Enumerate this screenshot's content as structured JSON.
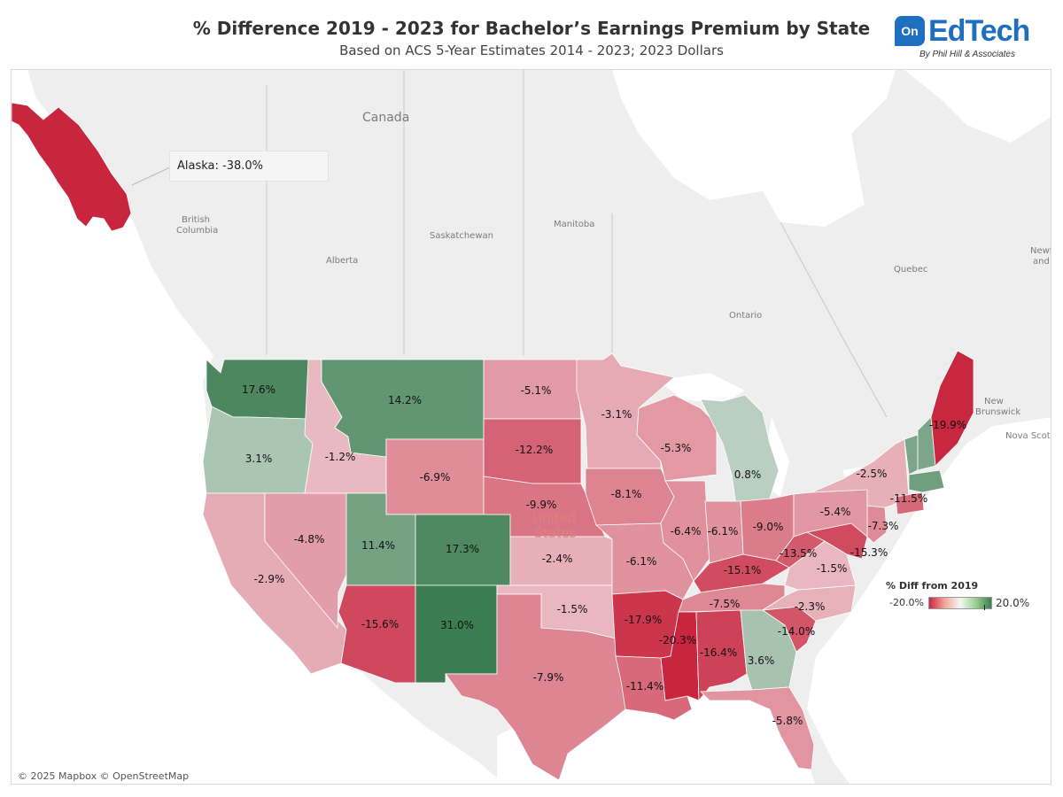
{
  "header": {
    "title": "% Difference 2019 - 2023 for Bachelor’s Earnings Premium by State",
    "subtitle": "Based on ACS 5-Year Estimates 2014 - 2023; 2023 Dollars"
  },
  "logo": {
    "badge": "On",
    "name": "EdTech",
    "byline": "By Phil Hill & Associates"
  },
  "attribution": "© 2025 Mapbox © OpenStreetMap",
  "tooltip": "Alaska: -38.0%",
  "basemap_labels": {
    "canada": "Canada",
    "british_columbia_1": "British",
    "british_columbia_2": "Columbia",
    "alberta": "Alberta",
    "saskatchewan": "Saskatchewan",
    "manitoba": "Manitoba",
    "ontario": "Ontario",
    "quebec": "Quebec",
    "new_brunswick_1": "New",
    "new_brunswick_2": "Brunswick",
    "nova_scotia": "Nova Scoti",
    "newf_1": "Newf",
    "newf_2": "and",
    "united_states_1": "United",
    "united_states_2": "States"
  },
  "legend": {
    "title": "% Diff from 2019",
    "min_label": "-20.0%",
    "max_label": "20.0%",
    "min": -20,
    "max": 20
  },
  "colors": {
    "negative": "#c8263f",
    "neutral": "#f7f7f7",
    "positive": "#3c7d51"
  },
  "chart_data": {
    "type": "choropleth",
    "title": "% Difference 2019 - 2023 for Bachelor’s Earnings Premium by State",
    "value_unit": "%",
    "states": [
      {
        "name": "Alaska",
        "value": -38.0,
        "label": "-38.0%"
      },
      {
        "name": "Washington",
        "value": 17.6,
        "label": "17.6%"
      },
      {
        "name": "Oregon",
        "value": 3.1,
        "label": "3.1%"
      },
      {
        "name": "California",
        "value": -2.9,
        "label": "-2.9%"
      },
      {
        "name": "Idaho",
        "value": -1.2,
        "label": "-1.2%"
      },
      {
        "name": "Nevada",
        "value": -4.8,
        "label": "-4.8%"
      },
      {
        "name": "Montana",
        "value": 14.2,
        "label": "14.2%"
      },
      {
        "name": "Wyoming",
        "value": -6.9,
        "label": "-6.9%"
      },
      {
        "name": "Utah",
        "value": 11.4,
        "label": "11.4%"
      },
      {
        "name": "Colorado",
        "value": 17.3,
        "label": "17.3%"
      },
      {
        "name": "Arizona",
        "value": -15.6,
        "label": "-15.6%"
      },
      {
        "name": "New Mexico",
        "value": 31.0,
        "label": "31.0%"
      },
      {
        "name": "North Dakota",
        "value": -5.1,
        "label": "-5.1%"
      },
      {
        "name": "South Dakota",
        "value": -12.2,
        "label": "-12.2%"
      },
      {
        "name": "Nebraska",
        "value": -9.9,
        "label": "-9.9%"
      },
      {
        "name": "Kansas",
        "value": -2.4,
        "label": "-2.4%"
      },
      {
        "name": "Oklahoma",
        "value": -1.5,
        "label": "-1.5%"
      },
      {
        "name": "Texas",
        "value": -7.9,
        "label": "-7.9%"
      },
      {
        "name": "Minnesota",
        "value": -3.1,
        "label": "-3.1%"
      },
      {
        "name": "Iowa",
        "value": -8.1,
        "label": "-8.1%"
      },
      {
        "name": "Missouri",
        "value": -6.1,
        "label": "-6.1%"
      },
      {
        "name": "Arkansas",
        "value": -17.9,
        "label": "-17.9%"
      },
      {
        "name": "Louisiana",
        "value": -11.4,
        "label": "-11.4%"
      },
      {
        "name": "Wisconsin",
        "value": -5.3,
        "label": "-5.3%"
      },
      {
        "name": "Illinois",
        "value": -6.4,
        "label": "-6.4%"
      },
      {
        "name": "Michigan",
        "value": 0.8,
        "label": "0.8%"
      },
      {
        "name": "Indiana",
        "value": -6.1,
        "label": "-6.1%"
      },
      {
        "name": "Ohio",
        "value": -9.0,
        "label": "-9.0%"
      },
      {
        "name": "Kentucky",
        "value": -15.1,
        "label": "-15.1%"
      },
      {
        "name": "Tennessee",
        "value": -7.5,
        "label": "-7.5%"
      },
      {
        "name": "Mississippi",
        "value": -20.3,
        "label": "-20.3%"
      },
      {
        "name": "Alabama",
        "value": -16.4,
        "label": "-16.4%"
      },
      {
        "name": "Georgia",
        "value": 3.6,
        "label": "3.6%"
      },
      {
        "name": "Florida",
        "value": -5.8,
        "label": "-5.8%"
      },
      {
        "name": "South Carolina",
        "value": -14.0,
        "label": "-14.0%"
      },
      {
        "name": "North Carolina",
        "value": -2.3,
        "label": "-2.3%"
      },
      {
        "name": "Virginia",
        "value": -1.5,
        "label": "-1.5%"
      },
      {
        "name": "West Virginia",
        "value": -13.5,
        "label": "-13.5%"
      },
      {
        "name": "Maryland",
        "value": -15.3,
        "label": "-15.3%"
      },
      {
        "name": "New Jersey",
        "value": -7.3,
        "label": "-7.3%"
      },
      {
        "name": "Pennsylvania",
        "value": -5.4,
        "label": "-5.4%"
      },
      {
        "name": "New York",
        "value": -2.5,
        "label": "-2.5%"
      },
      {
        "name": "Connecticut",
        "value": -11.5,
        "label": "-11.5%"
      },
      {
        "name": "Vermont",
        "value": 10.3,
        "label": "10.3%"
      },
      {
        "name": "New Hampshire",
        "value": 10.3,
        "label": ""
      },
      {
        "name": "Massachusetts",
        "value": 12.0,
        "label": ""
      },
      {
        "name": "Maine",
        "value": -19.9,
        "label": "-19.9%"
      }
    ]
  }
}
